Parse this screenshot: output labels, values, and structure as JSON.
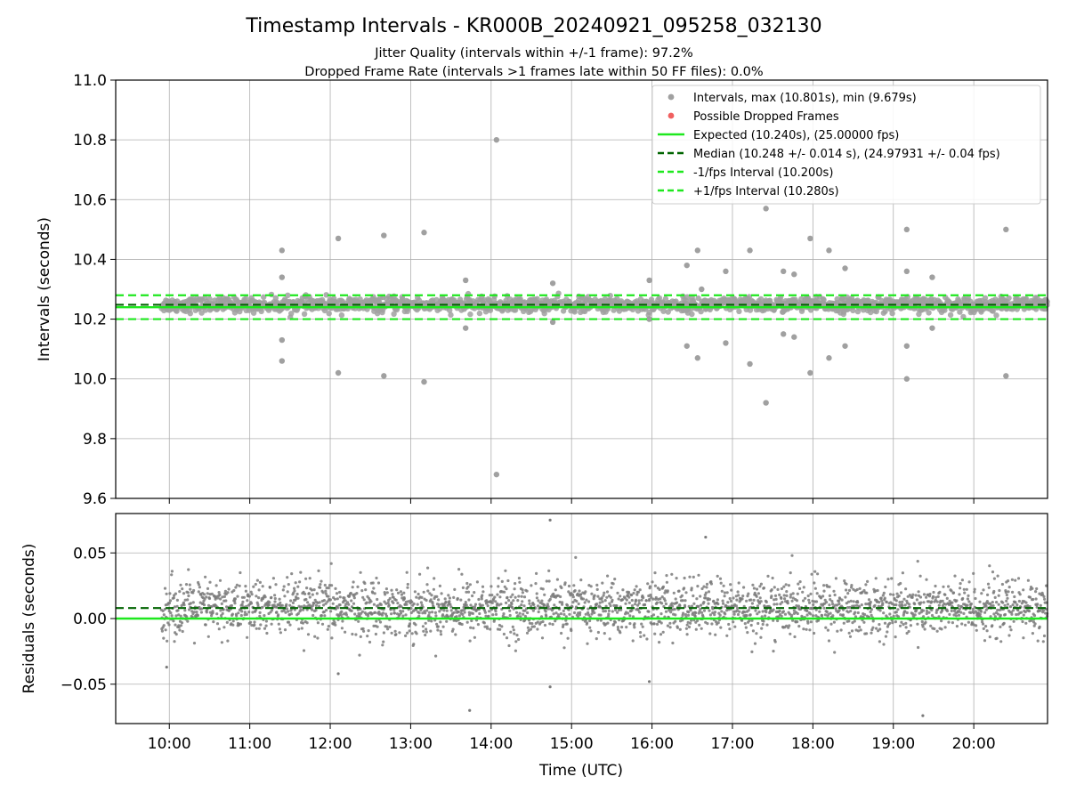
{
  "figure": {
    "title": "Timestamp Intervals - KR000B_20240921_095258_032130",
    "subtitle_line1": "Jitter Quality (intervals within +/-1 frame): 97.2%",
    "subtitle_line2": "Dropped Frame Rate (intervals >1 frames late within 50 FF files): 0.0%"
  },
  "colors": {
    "points": "#a0a0a0",
    "residual_points": "#7a7a7a",
    "dropped": "#f06060",
    "expected": "#1ee81e",
    "median": "#006400",
    "fps_interval": "#1ee81e",
    "grid": "#b0b0b0"
  },
  "chart_data": [
    {
      "type": "scatter",
      "ylabel": "Intervals (seconds)",
      "xlabel": "",
      "ylim": [
        9.6,
        11.0
      ],
      "xlim": [
        "09:20",
        "20:55"
      ],
      "grid": true,
      "legend_position": "top-right",
      "yticks": [
        "9.6",
        "9.8",
        "10.0",
        "10.2",
        "10.4",
        "10.6",
        "10.8",
        "11.0"
      ],
      "ytick_values": [
        9.6,
        9.8,
        10.0,
        10.2,
        10.4,
        10.6,
        10.8,
        11.0
      ],
      "lines": {
        "expected": 10.24,
        "median": 10.248,
        "minus_fps": 10.2,
        "plus_fps": 10.28
      },
      "legend": [
        {
          "label": "Intervals, max (10.801s), min (9.679s)",
          "kind": "point",
          "color": "#a0a0a0"
        },
        {
          "label": "Possible Dropped Frames",
          "kind": "point",
          "color": "#f06060"
        },
        {
          "label": "Expected (10.240s), (25.00000 fps)",
          "kind": "line",
          "color": "#1ee81e",
          "dash": false
        },
        {
          "label": "Median (10.248 +/- 0.014 s), (24.97931 +/- 0.04 fps)",
          "kind": "line",
          "color": "#006400",
          "dash": true
        },
        {
          "label": "-1/fps Interval (10.200s)",
          "kind": "line",
          "color": "#1ee81e",
          "dash": true
        },
        {
          "label": "+1/fps Interval (10.280s)",
          "kind": "line",
          "color": "#1ee81e",
          "dash": true
        }
      ],
      "series": [
        {
          "name": "Intervals, max (10.801s), min (9.679s)",
          "outliers": [
            {
              "x": "11:24",
              "y": 10.43
            },
            {
              "x": "11:24",
              "y": 10.34
            },
            {
              "x": "11:24",
              "y": 10.13
            },
            {
              "x": "11:24",
              "y": 10.06
            },
            {
              "x": "12:06",
              "y": 10.47
            },
            {
              "x": "12:06",
              "y": 10.02
            },
            {
              "x": "12:40",
              "y": 10.48
            },
            {
              "x": "12:40",
              "y": 10.01
            },
            {
              "x": "13:10",
              "y": 10.49
            },
            {
              "x": "13:10",
              "y": 9.99
            },
            {
              "x": "13:41",
              "y": 10.33
            },
            {
              "x": "13:41",
              "y": 10.17
            },
            {
              "x": "14:04",
              "y": 10.8
            },
            {
              "x": "14:04",
              "y": 9.68
            },
            {
              "x": "14:46",
              "y": 10.32
            },
            {
              "x": "14:46",
              "y": 10.19
            },
            {
              "x": "15:58",
              "y": 10.33
            },
            {
              "x": "15:58",
              "y": 10.2
            },
            {
              "x": "16:26",
              "y": 10.38
            },
            {
              "x": "16:26",
              "y": 10.11
            },
            {
              "x": "16:34",
              "y": 10.43
            },
            {
              "x": "16:34",
              "y": 10.07
            },
            {
              "x": "16:37",
              "y": 10.3
            },
            {
              "x": "16:55",
              "y": 10.36
            },
            {
              "x": "16:55",
              "y": 10.12
            },
            {
              "x": "17:13",
              "y": 10.43
            },
            {
              "x": "17:13",
              "y": 10.05
            },
            {
              "x": "17:25",
              "y": 10.57
            },
            {
              "x": "17:25",
              "y": 9.92
            },
            {
              "x": "17:31",
              "y": 10.23
            },
            {
              "x": "17:38",
              "y": 10.36
            },
            {
              "x": "17:38",
              "y": 10.15
            },
            {
              "x": "17:46",
              "y": 10.35
            },
            {
              "x": "17:46",
              "y": 10.14
            },
            {
              "x": "17:58",
              "y": 10.47
            },
            {
              "x": "17:58",
              "y": 10.02
            },
            {
              "x": "18:12",
              "y": 10.43
            },
            {
              "x": "18:12",
              "y": 10.07
            },
            {
              "x": "18:24",
              "y": 10.37
            },
            {
              "x": "18:24",
              "y": 10.11
            },
            {
              "x": "19:10",
              "y": 10.5
            },
            {
              "x": "19:10",
              "y": 10.36
            },
            {
              "x": "19:10",
              "y": 10.11
            },
            {
              "x": "19:10",
              "y": 10.0
            },
            {
              "x": "19:29",
              "y": 10.34
            },
            {
              "x": "19:29",
              "y": 10.17
            },
            {
              "x": "20:24",
              "y": 10.5
            },
            {
              "x": "20:24",
              "y": 10.01
            }
          ],
          "bulk": {
            "x_start": "09:54",
            "x_end": "20:55",
            "center": 10.248,
            "spread": 0.02
          }
        }
      ]
    },
    {
      "type": "scatter",
      "ylabel": "Residuals (seconds)",
      "xlabel": "Time (UTC)",
      "ylim": [
        -0.08,
        0.08
      ],
      "xlim": [
        "09:20",
        "20:55"
      ],
      "grid": true,
      "yticks": [
        "−0.05",
        "0.00",
        "0.05"
      ],
      "ytick_values": [
        -0.05,
        0.0,
        0.05
      ],
      "xticks": [
        "10:00",
        "11:00",
        "12:00",
        "13:00",
        "14:00",
        "15:00",
        "16:00",
        "17:00",
        "18:00",
        "19:00",
        "20:00"
      ],
      "lines": {
        "expected": 0.0,
        "median": 0.008
      },
      "series": [
        {
          "name": "Residuals",
          "outliers": [
            {
              "x": "14:44",
              "y": 0.075
            },
            {
              "x": "14:44",
              "y": -0.052
            },
            {
              "x": "13:44",
              "y": -0.07
            },
            {
              "x": "16:40",
              "y": 0.062
            },
            {
              "x": "19:22",
              "y": -0.074
            },
            {
              "x": "15:58",
              "y": -0.048
            },
            {
              "x": "09:58",
              "y": -0.037
            },
            {
              "x": "12:06",
              "y": -0.042
            }
          ],
          "bulk": {
            "x_start": "09:54",
            "x_end": "20:55",
            "center": 0.008,
            "spread": 0.018
          }
        }
      ]
    }
  ]
}
